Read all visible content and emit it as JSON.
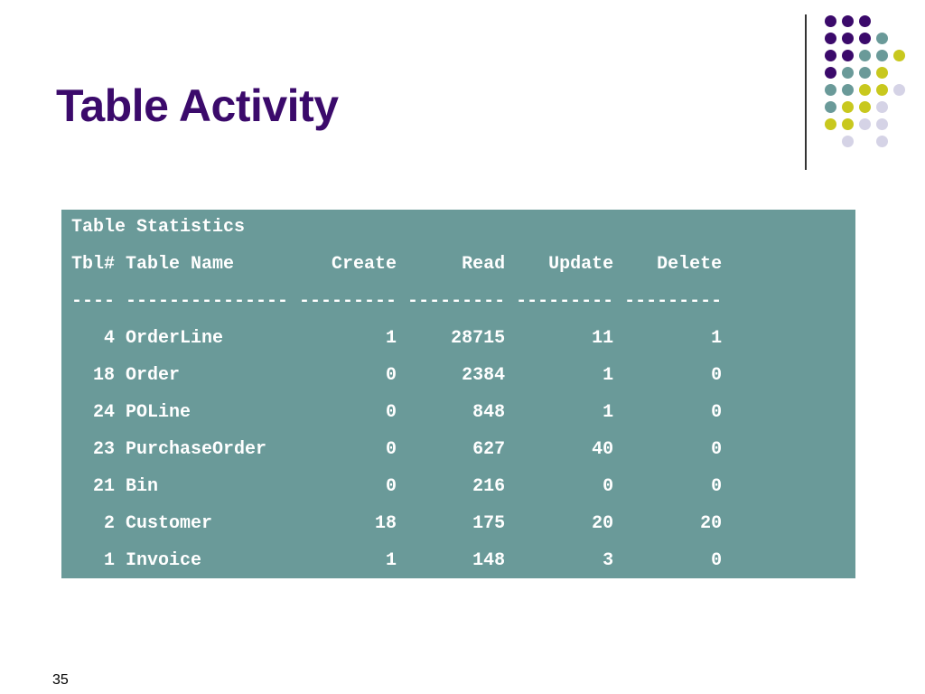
{
  "slide": {
    "title": "Table Activity",
    "page_number": "35"
  },
  "colors": {
    "purple": "#3b0a6b",
    "teal": "#6a9a99",
    "olive": "#c8c81e",
    "lavender": "#d5d3e6"
  },
  "decoration": {
    "dot_rows": [
      [
        "purple",
        "purple",
        "purple",
        null,
        null
      ],
      [
        "purple",
        "purple",
        "purple",
        "teal",
        null
      ],
      [
        "purple",
        "purple",
        "teal",
        "teal",
        "olive"
      ],
      [
        "purple",
        "teal",
        "teal",
        "olive",
        null
      ],
      [
        "teal",
        "teal",
        "olive",
        "olive",
        "lavender"
      ],
      [
        "teal",
        "olive",
        "olive",
        "lavender",
        null
      ],
      [
        "olive",
        "olive",
        "lavender",
        "lavender",
        null
      ],
      [
        null,
        "lavender",
        null,
        "lavender",
        null
      ]
    ]
  },
  "statistics": {
    "heading": "Table Statistics",
    "header_line": "Tbl# Table Name         Create      Read    Update    Delete",
    "separator_line": "---- --------------- --------- --------- --------- ---------",
    "rows": [
      "   4 OrderLine               1     28715        11         1",
      "  18 Order                   0      2384         1         0",
      "  24 POLine                  0       848         1         0",
      "  23 PurchaseOrder           0       627        40         0",
      "  21 Bin                     0       216         0         0",
      "   2 Customer               18       175        20        20",
      "   1 Invoice                 1       148         3         0"
    ]
  }
}
